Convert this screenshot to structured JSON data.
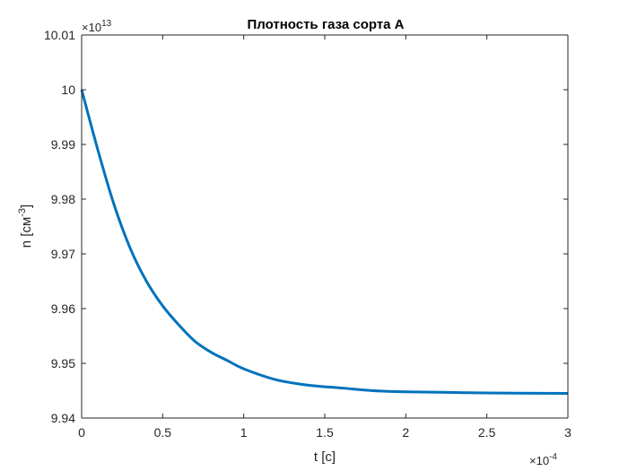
{
  "chart_data": {
    "type": "line",
    "title": "Плотность газа сорта А",
    "xlabel": "t [c]",
    "ylabel_base": "n [см",
    "ylabel_exp": "-3",
    "ylabel_close": "]",
    "x_exponent_label": "×10",
    "x_exponent_power": "-4",
    "y_exponent_label": "×10",
    "y_exponent_power": "13",
    "xlim": [
      0,
      3
    ],
    "ylim": [
      9.94,
      10.01
    ],
    "x_ticks": [
      "0",
      "0.5",
      "1",
      "1.5",
      "2",
      "2.5",
      "3"
    ],
    "y_ticks": [
      "9.94",
      "9.95",
      "9.96",
      "9.97",
      "9.98",
      "9.99",
      "10",
      "10.01"
    ],
    "grid": false,
    "series": [
      {
        "color": "#0072bd",
        "x": [
          0,
          0.1,
          0.2,
          0.3,
          0.4,
          0.5,
          0.6,
          0.7,
          0.8,
          0.9,
          1.0,
          1.2,
          1.4,
          1.6,
          1.8,
          2.0,
          2.5,
          3.0
        ],
        "y": [
          10.0,
          9.989,
          9.979,
          9.971,
          9.965,
          9.9605,
          9.957,
          9.954,
          9.952,
          9.9505,
          9.949,
          9.947,
          9.946,
          9.9455,
          9.945,
          9.9448,
          9.9446,
          9.9445
        ]
      }
    ]
  }
}
